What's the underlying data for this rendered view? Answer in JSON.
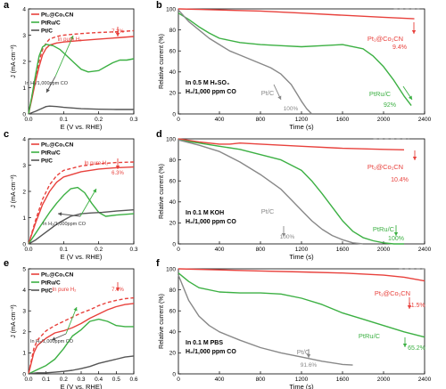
{
  "chart_data": [
    {
      "panel": "a",
      "type": "line",
      "xlabel": "E (V vs. RHE)",
      "ylabel": "J (mA cm⁻²)",
      "xlim": [
        0,
        0.3
      ],
      "ylim": [
        0,
        4
      ],
      "xticks": [
        "0.0",
        "0.1",
        "0.2",
        "0.3"
      ],
      "yticks": [
        "0",
        "1",
        "2",
        "3",
        "4"
      ],
      "legend": [
        "Pt₁@Co₁CN",
        "PtRu/C",
        "Pt/C"
      ],
      "legend_position": "top-left",
      "annotations": [
        "In pure H₂",
        "In H₂/1,000ppm CO",
        "7.2%"
      ],
      "series": [
        {
          "name": "Pt₁@Co₁CN",
          "color": "#e8413c",
          "x": [
            0,
            0.01,
            0.02,
            0.03,
            0.04,
            0.05,
            0.06,
            0.08,
            0.1,
            0.15,
            0.2,
            0.25,
            0.3
          ],
          "y": [
            0,
            0.6,
            1.25,
            1.8,
            2.25,
            2.5,
            2.62,
            2.7,
            2.74,
            2.8,
            2.85,
            2.9,
            2.95
          ]
        },
        {
          "name": "Pt₁@Co₁CN (in pure H₂)",
          "color": "#e8413c",
          "dashed": true,
          "x": [
            0,
            0.01,
            0.02,
            0.03,
            0.04,
            0.05,
            0.06,
            0.08,
            0.1,
            0.15,
            0.2,
            0.25,
            0.3
          ],
          "y": [
            0,
            0.7,
            1.4,
            2.0,
            2.45,
            2.7,
            2.85,
            2.95,
            3.0,
            3.06,
            3.1,
            3.13,
            3.17
          ]
        },
        {
          "name": "PtRu/C",
          "color": "#3cb043",
          "x": [
            0,
            0.01,
            0.02,
            0.03,
            0.04,
            0.05,
            0.07,
            0.09,
            0.11,
            0.13,
            0.15,
            0.17,
            0.2,
            0.22,
            0.24,
            0.26,
            0.28,
            0.3
          ],
          "y": [
            0,
            0.7,
            1.5,
            2.2,
            2.55,
            2.65,
            2.6,
            2.45,
            2.2,
            1.95,
            1.7,
            1.6,
            1.65,
            1.8,
            1.95,
            2.05,
            2.05,
            2.1
          ]
        },
        {
          "name": "Pt/C",
          "color": "#555555",
          "x": [
            0,
            0.02,
            0.04,
            0.05,
            0.06,
            0.08,
            0.1,
            0.15,
            0.2,
            0.25,
            0.3
          ],
          "y": [
            0,
            0.1,
            0.22,
            0.28,
            0.3,
            0.28,
            0.25,
            0.2,
            0.18,
            0.17,
            0.17
          ]
        }
      ]
    },
    {
      "panel": "b",
      "type": "line",
      "xlabel": "Time (s)",
      "ylabel": "Relative current (%)",
      "xlim": [
        0,
        2400
      ],
      "ylim": [
        0,
        100
      ],
      "xticks": [
        "0",
        "400",
        "800",
        "1200",
        "1600",
        "2000",
        "2400"
      ],
      "yticks": [
        "0",
        "20",
        "40",
        "60",
        "80",
        "100"
      ],
      "conditions": [
        "In 0.5 M H₂SO₄",
        "H₂/1,000 ppm CO"
      ],
      "annotations": [
        "9.4%",
        "100%",
        "92%"
      ],
      "series": [
        {
          "name": "Pt₁@Co₁CN",
          "color": "#e8413c",
          "x": [
            0,
            200,
            400,
            800,
            1200,
            1600,
            2000,
            2300
          ],
          "y": [
            100,
            99.5,
            99,
            98,
            96,
            94,
            92,
            90.6
          ]
        },
        {
          "name": "PtRu/C",
          "color": "#3cb043",
          "x": [
            0,
            100,
            200,
            300,
            400,
            600,
            800,
            1000,
            1200,
            1400,
            1600,
            1800,
            1900,
            2000,
            2100,
            2200,
            2270
          ],
          "y": [
            96,
            90,
            83,
            77,
            72,
            68,
            66,
            65,
            64,
            65,
            66,
            62,
            55,
            45,
            32,
            17,
            8
          ]
        },
        {
          "name": "Pt/C",
          "color": "#888888",
          "x": [
            0,
            100,
            200,
            300,
            400,
            500,
            600,
            700,
            800,
            900,
            1000,
            1100,
            1150,
            1200,
            1250,
            1300
          ],
          "y": [
            99,
            88,
            80,
            72,
            66,
            60,
            56,
            52,
            48,
            44,
            38,
            28,
            20,
            12,
            5,
            0
          ]
        },
        {
          "name": "",
          "color": "#999999",
          "dashed": true,
          "x": [
            2100,
            2350
          ],
          "y": [
            100,
            100
          ]
        }
      ]
    },
    {
      "panel": "c",
      "type": "line",
      "xlabel": "E (V vs. RHE)",
      "ylabel": "J (mA cm⁻²)",
      "xlim": [
        0,
        0.3
      ],
      "ylim": [
        0,
        4
      ],
      "xticks": [
        "0.0",
        "0.1",
        "0.2",
        "0.3"
      ],
      "yticks": [
        "0",
        "1",
        "2",
        "3",
        "4"
      ],
      "legend": [
        "Pt₁@Co₁CN",
        "PtRu/C",
        "Pt/C"
      ],
      "legend_position": "top-left",
      "annotations": [
        "In pure H₂",
        "In H₂/1,000ppm CO",
        "6.3%"
      ],
      "series": [
        {
          "name": "Pt₁@Co₁CN",
          "color": "#e8413c",
          "x": [
            0,
            0.02,
            0.04,
            0.06,
            0.08,
            0.1,
            0.15,
            0.2,
            0.25,
            0.3
          ],
          "y": [
            0,
            0.8,
            1.5,
            2.0,
            2.35,
            2.55,
            2.75,
            2.85,
            2.9,
            2.93
          ]
        },
        {
          "name": "Pt₁@Co₁CN (in pure H₂)",
          "color": "#e8413c",
          "dashed": true,
          "x": [
            0,
            0.02,
            0.04,
            0.06,
            0.08,
            0.1,
            0.15,
            0.2,
            0.25,
            0.3
          ],
          "y": [
            0,
            0.9,
            1.7,
            2.25,
            2.6,
            2.8,
            2.97,
            3.05,
            3.1,
            3.12
          ]
        },
        {
          "name": "PtRu/C",
          "color": "#3cb043",
          "x": [
            0,
            0.02,
            0.04,
            0.06,
            0.08,
            0.1,
            0.12,
            0.14,
            0.16,
            0.18,
            0.2,
            0.22,
            0.25,
            0.3
          ],
          "y": [
            0,
            0.4,
            0.8,
            1.2,
            1.55,
            1.85,
            2.1,
            2.15,
            1.95,
            1.55,
            1.2,
            1.05,
            1.1,
            1.15
          ]
        },
        {
          "name": "Pt/C",
          "color": "#555555",
          "x": [
            0,
            0.02,
            0.04,
            0.06,
            0.08,
            0.1,
            0.12,
            0.15,
            0.18,
            0.21,
            0.25,
            0.3
          ],
          "y": [
            0,
            0.15,
            0.35,
            0.55,
            0.75,
            0.9,
            1.05,
            1.15,
            1.18,
            1.2,
            1.25,
            1.3
          ]
        }
      ]
    },
    {
      "panel": "d",
      "type": "line",
      "xlabel": "Time (s)",
      "ylabel": "Relative current (%)",
      "xlim": [
        0,
        2400
      ],
      "ylim": [
        0,
        100
      ],
      "xticks": [
        "0",
        "400",
        "800",
        "1200",
        "1600",
        "2000",
        "2400"
      ],
      "yticks": [
        "0",
        "20",
        "40",
        "60",
        "80",
        "100"
      ],
      "conditions": [
        "In 0.1 M KOH",
        "H₂/1,000 ppm CO"
      ],
      "annotations": [
        "10.4%",
        "100%",
        "100%"
      ],
      "series": [
        {
          "name": "Pt₁@Co₁CN",
          "color": "#e8413c",
          "x": [
            0,
            200,
            400,
            500,
            600,
            800,
            1200,
            1600,
            2000,
            2200
          ],
          "y": [
            100,
            97,
            95,
            95,
            96,
            95,
            93,
            91,
            90,
            89.6
          ]
        },
        {
          "name": "PtRu/C",
          "color": "#3cb043",
          "x": [
            0,
            200,
            400,
            600,
            800,
            1000,
            1200,
            1300,
            1400,
            1500,
            1600,
            1700,
            1800,
            1900,
            2000,
            2100,
            2200
          ],
          "y": [
            99,
            96,
            93,
            90,
            85,
            80,
            70,
            60,
            48,
            35,
            22,
            12,
            6,
            3,
            1,
            0,
            0
          ]
        },
        {
          "name": "Pt/C",
          "color": "#888888",
          "x": [
            0,
            200,
            400,
            600,
            800,
            1000,
            1100,
            1200,
            1300,
            1400,
            1500,
            1600,
            1700,
            1800
          ],
          "y": [
            99,
            94,
            88,
            78,
            66,
            52,
            42,
            32,
            22,
            14,
            8,
            4,
            1,
            0
          ]
        },
        {
          "name": "",
          "color": "#999999",
          "dashed": true,
          "x": [
            1900,
            2250
          ],
          "y": [
            100,
            100
          ]
        }
      ]
    },
    {
      "panel": "e",
      "type": "line",
      "xlabel": "E (V vs. RHE)",
      "ylabel": "J (mA cm⁻²)",
      "xlim": [
        0,
        0.6
      ],
      "ylim": [
        0,
        5
      ],
      "xticks": [
        "0.0",
        "0.1",
        "0.2",
        "0.3",
        "0.4",
        "0.5",
        "0.6"
      ],
      "yticks": [
        "0",
        "1",
        "2",
        "3",
        "4",
        "5"
      ],
      "legend": [
        "Pt₁@Co₁CN",
        "PtRu/C",
        "Pt/C"
      ],
      "legend_position": "top-left",
      "annotations": [
        "In pure H₂",
        "In H₂/1,000ppm CO",
        "7.4%"
      ],
      "series": [
        {
          "name": "Pt₁@Co₁CN",
          "color": "#e8413c",
          "x": [
            0,
            0.03,
            0.05,
            0.1,
            0.15,
            0.2,
            0.25,
            0.3,
            0.35,
            0.4,
            0.45,
            0.5,
            0.55,
            0.6
          ],
          "y": [
            0,
            1.0,
            1.35,
            1.7,
            1.95,
            2.05,
            2.2,
            2.4,
            2.65,
            2.85,
            3.05,
            3.2,
            3.3,
            3.35
          ]
        },
        {
          "name": "Pt₁@Co₁CN (in pure H₂)",
          "color": "#e8413c",
          "dashed": true,
          "x": [
            0,
            0.03,
            0.05,
            0.1,
            0.15,
            0.2,
            0.25,
            0.3,
            0.35,
            0.4,
            0.45,
            0.5,
            0.55,
            0.6
          ],
          "y": [
            0,
            1.2,
            1.6,
            2.05,
            2.3,
            2.5,
            2.7,
            2.9,
            3.05,
            3.25,
            3.4,
            3.5,
            3.58,
            3.62
          ]
        },
        {
          "name": "PtRu/C",
          "color": "#3cb043",
          "x": [
            0,
            0.05,
            0.1,
            0.15,
            0.2,
            0.25,
            0.3,
            0.35,
            0.4,
            0.45,
            0.5,
            0.55,
            0.6
          ],
          "y": [
            0,
            0.2,
            0.4,
            0.7,
            1.2,
            1.8,
            2.1,
            2.5,
            2.6,
            2.5,
            2.3,
            2.25,
            2.25
          ]
        },
        {
          "name": "Pt/C",
          "color": "#555555",
          "x": [
            0,
            0.05,
            0.1,
            0.15,
            0.2,
            0.25,
            0.3,
            0.35,
            0.4,
            0.45,
            0.5,
            0.55,
            0.6
          ],
          "y": [
            0,
            0.05,
            0.05,
            0.08,
            0.12,
            0.17,
            0.25,
            0.35,
            0.5,
            0.6,
            0.7,
            0.8,
            0.85
          ]
        }
      ]
    },
    {
      "panel": "f",
      "type": "line",
      "xlabel": "Time (s)",
      "ylabel": "Relative current (%)",
      "xlim": [
        0,
        2400
      ],
      "ylim": [
        0,
        100
      ],
      "xticks": [
        "0",
        "400",
        "800",
        "1200",
        "1600",
        "2000",
        "2400"
      ],
      "yticks": [
        "0",
        "20",
        "40",
        "60",
        "80",
        "100"
      ],
      "conditions": [
        "In 0.1 M PBS",
        "H₂/1,000 ppm CO"
      ],
      "annotations": [
        "11.5%",
        "91.6%",
        "65.2%"
      ],
      "series": [
        {
          "name": "Pt₁@Co₁CN",
          "color": "#e8413c",
          "x": [
            0,
            400,
            800,
            1200,
            1600,
            2000,
            2200,
            2400
          ],
          "y": [
            100,
            99,
            98,
            97,
            96,
            94,
            92,
            88.5
          ]
        },
        {
          "name": "PtRu/C",
          "color": "#3cb043",
          "x": [
            0,
            100,
            200,
            400,
            600,
            800,
            1000,
            1200,
            1400,
            1600,
            1800,
            2000,
            2200,
            2400
          ],
          "y": [
            96,
            88,
            82,
            78,
            77,
            77,
            76,
            72,
            66,
            58,
            52,
            46,
            40,
            35
          ]
        },
        {
          "name": "Pt/C",
          "color": "#888888",
          "x": [
            0,
            100,
            200,
            300,
            400,
            600,
            800,
            1000,
            1200,
            1400,
            1600,
            1700
          ],
          "y": [
            94,
            70,
            55,
            46,
            40,
            32,
            25,
            20,
            16,
            12,
            9,
            8.4
          ]
        },
        {
          "name": "",
          "color": "#999999",
          "dashed": true,
          "x": [
            2150,
            2400
          ],
          "y": [
            100,
            100
          ]
        }
      ]
    }
  ]
}
